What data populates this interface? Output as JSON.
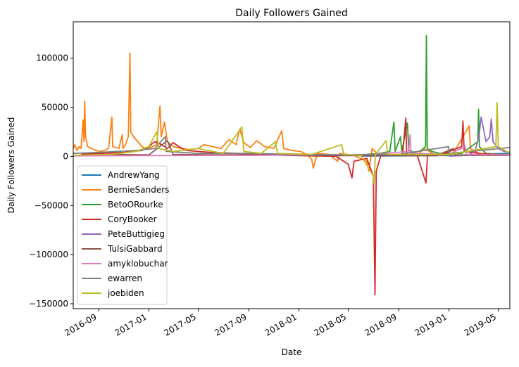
{
  "chart_data": {
    "type": "line",
    "title": "Daily Followers Gained",
    "xlabel": "Date",
    "ylabel": "Daily Followers Gained",
    "xlim": [
      "2016-07-01",
      "2019-05-29"
    ],
    "ylim": [
      -155000,
      137000
    ],
    "xticks": [
      {
        "date": "2016-09-01",
        "label": "2016-09"
      },
      {
        "date": "2017-01-01",
        "label": "2017-01"
      },
      {
        "date": "2017-05-01",
        "label": "2017-05"
      },
      {
        "date": "2017-09-01",
        "label": "2017-09"
      },
      {
        "date": "2018-01-01",
        "label": "2018-01"
      },
      {
        "date": "2018-05-01",
        "label": "2018-05"
      },
      {
        "date": "2018-09-01",
        "label": "2018-09"
      },
      {
        "date": "2019-01-01",
        "label": "2019-01"
      },
      {
        "date": "2019-05-01",
        "label": "2019-05"
      }
    ],
    "yticks": [
      {
        "value": -150000,
        "label": "−150000"
      },
      {
        "value": -100000,
        "label": "−100000"
      },
      {
        "value": -50000,
        "label": "−50000"
      },
      {
        "value": 0,
        "label": "0"
      },
      {
        "value": 50000,
        "label": "50000"
      },
      {
        "value": 100000,
        "label": "100000"
      }
    ],
    "legend_position": "lower-left",
    "grid": false,
    "series": [
      {
        "name": "AndrewYang",
        "color": "#1f77b4",
        "points": [
          [
            "2018-06-01",
            300
          ],
          [
            "2018-09-01",
            500
          ],
          [
            "2019-01-01",
            900
          ],
          [
            "2019-03-01",
            1500
          ],
          [
            "2019-04-01",
            2500
          ],
          [
            "2019-05-29",
            3000
          ]
        ]
      },
      {
        "name": "BernieSanders",
        "color": "#ff7f0e",
        "points": [
          [
            "2016-07-01",
            8000
          ],
          [
            "2016-07-05",
            12000
          ],
          [
            "2016-07-10",
            6000
          ],
          [
            "2016-07-15",
            10000
          ],
          [
            "2016-07-20",
            8000
          ],
          [
            "2016-07-25",
            37000
          ],
          [
            "2016-07-27",
            15000
          ],
          [
            "2016-07-29",
            56000
          ],
          [
            "2016-07-31",
            20000
          ],
          [
            "2016-08-05",
            10000
          ],
          [
            "2016-08-15",
            8000
          ],
          [
            "2016-08-25",
            6000
          ],
          [
            "2016-09-05",
            5000
          ],
          [
            "2016-09-15",
            6000
          ],
          [
            "2016-09-25",
            8000
          ],
          [
            "2016-10-03",
            40000
          ],
          [
            "2016-10-05",
            10000
          ],
          [
            "2016-10-20",
            8000
          ],
          [
            "2016-10-28",
            22000
          ],
          [
            "2016-10-30",
            8000
          ],
          [
            "2016-11-05",
            12000
          ],
          [
            "2016-11-12",
            20000
          ],
          [
            "2016-11-16",
            105000
          ],
          [
            "2016-11-18",
            25000
          ],
          [
            "2016-11-25",
            20000
          ],
          [
            "2016-12-05",
            15000
          ],
          [
            "2016-12-15",
            10000
          ],
          [
            "2016-12-25",
            8000
          ],
          [
            "2017-01-05",
            9000
          ],
          [
            "2017-01-20",
            12000
          ],
          [
            "2017-01-28",
            51000
          ],
          [
            "2017-01-31",
            20000
          ],
          [
            "2017-02-08",
            35000
          ],
          [
            "2017-02-15",
            15000
          ],
          [
            "2017-03-01",
            10000
          ],
          [
            "2017-03-20",
            8000
          ],
          [
            "2017-04-10",
            7000
          ],
          [
            "2017-05-01",
            8000
          ],
          [
            "2017-05-15",
            12000
          ],
          [
            "2017-06-05",
            10000
          ],
          [
            "2017-06-25",
            8000
          ],
          [
            "2017-07-15",
            17000
          ],
          [
            "2017-08-01",
            12000
          ],
          [
            "2017-08-10",
            28000
          ],
          [
            "2017-08-20",
            14000
          ],
          [
            "2017-09-05",
            9000
          ],
          [
            "2017-09-20",
            16000
          ],
          [
            "2017-10-10",
            10000
          ],
          [
            "2017-11-01",
            8000
          ],
          [
            "2017-11-20",
            26000
          ],
          [
            "2017-11-25",
            8000
          ],
          [
            "2017-12-15",
            6000
          ],
          [
            "2018-01-05",
            5000
          ],
          [
            "2018-01-20",
            2000
          ],
          [
            "2018-02-01",
            -3000
          ],
          [
            "2018-02-05",
            -12000
          ],
          [
            "2018-02-15",
            3000
          ],
          [
            "2018-03-15",
            2000
          ],
          [
            "2018-04-05",
            -5000
          ],
          [
            "2018-04-10",
            3000
          ],
          [
            "2018-05-15",
            1000
          ],
          [
            "2018-06-15",
            -5000
          ],
          [
            "2018-06-20",
            -15000
          ],
          [
            "2018-06-28",
            8000
          ],
          [
            "2018-07-10",
            3000
          ],
          [
            "2018-08-10",
            1000
          ],
          [
            "2018-09-15",
            2000
          ],
          [
            "2018-10-15",
            1000
          ],
          [
            "2018-11-01",
            8000
          ],
          [
            "2018-12-01",
            1000
          ],
          [
            "2019-01-10",
            2000
          ],
          [
            "2019-02-19",
            31000
          ],
          [
            "2019-02-22",
            8000
          ],
          [
            "2019-03-15",
            3000
          ],
          [
            "2019-04-15",
            2000
          ],
          [
            "2019-05-15",
            1000
          ],
          [
            "2019-05-29",
            2000
          ]
        ]
      },
      {
        "name": "BetoORourke",
        "color": "#2ca02c",
        "points": [
          [
            "2018-03-01",
            500
          ],
          [
            "2018-06-01",
            1500
          ],
          [
            "2018-07-15",
            3000
          ],
          [
            "2018-08-10",
            5000
          ],
          [
            "2018-08-20",
            35000
          ],
          [
            "2018-08-23",
            5000
          ],
          [
            "2018-09-05",
            20000
          ],
          [
            "2018-09-08",
            5000
          ],
          [
            "2018-09-22",
            34000
          ],
          [
            "2018-09-25",
            6000
          ],
          [
            "2018-10-10",
            4000
          ],
          [
            "2018-10-25",
            6000
          ],
          [
            "2018-11-05",
            10000
          ],
          [
            "2018-11-07",
            123000
          ],
          [
            "2018-11-09",
            8000
          ],
          [
            "2018-11-20",
            5000
          ],
          [
            "2018-12-10",
            3000
          ],
          [
            "2019-01-10",
            3000
          ],
          [
            "2019-02-01",
            3000
          ],
          [
            "2019-03-12",
            15000
          ],
          [
            "2019-03-14",
            48000
          ],
          [
            "2019-03-16",
            10000
          ],
          [
            "2019-04-01",
            3000
          ],
          [
            "2019-05-01",
            2000
          ],
          [
            "2019-05-29",
            1500
          ]
        ]
      },
      {
        "name": "CoryBooker",
        "color": "#d62728",
        "points": [
          [
            "2016-07-20",
            2000
          ],
          [
            "2016-09-01",
            3000
          ],
          [
            "2016-11-01",
            4000
          ],
          [
            "2016-12-15",
            6000
          ],
          [
            "2017-01-01",
            10000
          ],
          [
            "2017-01-15",
            15000
          ],
          [
            "2017-02-01",
            12000
          ],
          [
            "2017-02-15",
            8000
          ],
          [
            "2017-03-01",
            14000
          ],
          [
            "2017-03-15",
            10000
          ],
          [
            "2017-04-01",
            6000
          ],
          [
            "2017-05-01",
            5000
          ],
          [
            "2017-06-01",
            4000
          ],
          [
            "2017-08-01",
            3000
          ],
          [
            "2017-10-01",
            2000
          ],
          [
            "2017-12-01",
            1000
          ],
          [
            "2018-02-01",
            500
          ],
          [
            "2018-04-01",
            0
          ],
          [
            "2018-05-01",
            -8000
          ],
          [
            "2018-05-10",
            -22000
          ],
          [
            "2018-05-15",
            -5000
          ],
          [
            "2018-06-15",
            -2000
          ],
          [
            "2018-07-01",
            -20000
          ],
          [
            "2018-07-05",
            -141000
          ],
          [
            "2018-07-08",
            -15000
          ],
          [
            "2018-07-20",
            2000
          ],
          [
            "2018-09-10",
            1000
          ],
          [
            "2018-09-18",
            39000
          ],
          [
            "2018-09-20",
            2000
          ],
          [
            "2018-10-15",
            2000
          ],
          [
            "2018-11-06",
            -27000
          ],
          [
            "2018-11-10",
            2000
          ],
          [
            "2018-12-15",
            2000
          ],
          [
            "2019-02-01",
            10000
          ],
          [
            "2019-02-04",
            36000
          ],
          [
            "2019-02-07",
            5000
          ],
          [
            "2019-03-15",
            3000
          ],
          [
            "2019-05-29",
            1000
          ]
        ]
      },
      {
        "name": "PeteButtigieg",
        "color": "#9467bd",
        "points": [
          [
            "2019-01-01",
            200
          ],
          [
            "2019-02-15",
            1000
          ],
          [
            "2019-03-05",
            5000
          ],
          [
            "2019-03-15",
            20000
          ],
          [
            "2019-03-20",
            40000
          ],
          [
            "2019-03-25",
            30000
          ],
          [
            "2019-04-01",
            15000
          ],
          [
            "2019-04-10",
            20000
          ],
          [
            "2019-04-14",
            38000
          ],
          [
            "2019-04-18",
            15000
          ],
          [
            "2019-05-01",
            8000
          ],
          [
            "2019-05-15",
            5000
          ],
          [
            "2019-05-29",
            4000
          ]
        ]
      },
      {
        "name": "TulsiGabbard",
        "color": "#8c564b",
        "points": [
          [
            "2016-07-01",
            1000
          ],
          [
            "2016-10-01",
            2000
          ],
          [
            "2017-01-01",
            1500
          ],
          [
            "2017-02-15",
            16000
          ],
          [
            "2017-03-01",
            2000
          ],
          [
            "2017-06-01",
            1500
          ],
          [
            "2017-10-01",
            1500
          ],
          [
            "2018-01-01",
            1000
          ],
          [
            "2018-04-01",
            800
          ],
          [
            "2018-08-01",
            700
          ],
          [
            "2018-12-01",
            800
          ],
          [
            "2019-01-12",
            8000
          ],
          [
            "2019-01-15",
            1500
          ],
          [
            "2019-03-01",
            1000
          ],
          [
            "2019-05-29",
            1000
          ]
        ]
      },
      {
        "name": "amyklobuchar",
        "color": "#e377c2",
        "points": [
          [
            "2016-07-01",
            500
          ],
          [
            "2017-01-01",
            800
          ],
          [
            "2017-10-01",
            1000
          ],
          [
            "2018-01-01",
            1500
          ],
          [
            "2018-07-01",
            2000
          ],
          [
            "2018-09-25",
            5000
          ],
          [
            "2018-09-28",
            22000
          ],
          [
            "2018-10-01",
            3000
          ],
          [
            "2019-01-01",
            2000
          ],
          [
            "2019-02-10",
            10000
          ],
          [
            "2019-02-12",
            2000
          ],
          [
            "2019-05-29",
            1500
          ]
        ]
      },
      {
        "name": "ewarren",
        "color": "#7f7f7f",
        "points": [
          [
            "2016-07-01",
            3000
          ],
          [
            "2016-09-01",
            4000
          ],
          [
            "2016-10-15",
            5000
          ],
          [
            "2016-12-01",
            6000
          ],
          [
            "2017-01-15",
            8000
          ],
          [
            "2017-02-10",
            20000
          ],
          [
            "2017-02-12",
            5000
          ],
          [
            "2017-05-01",
            3000
          ],
          [
            "2017-09-01",
            3000
          ],
          [
            "2018-01-01",
            2000
          ],
          [
            "2018-05-01",
            1500
          ],
          [
            "2018-09-01",
            2000
          ],
          [
            "2018-12-31",
            10000
          ],
          [
            "2019-01-02",
            3000
          ],
          [
            "2019-05-29",
            9000
          ]
        ]
      },
      {
        "name": "joebiden",
        "color": "#bcbd22",
        "points": [
          [
            "2016-07-01",
            1000
          ],
          [
            "2016-10-01",
            2000
          ],
          [
            "2016-12-01",
            5000
          ],
          [
            "2017-01-01",
            10000
          ],
          [
            "2017-01-20",
            25000
          ],
          [
            "2017-01-25",
            8000
          ],
          [
            "2017-03-01",
            5000
          ],
          [
            "2017-05-01",
            8000
          ],
          [
            "2017-07-01",
            3000
          ],
          [
            "2017-08-15",
            30000
          ],
          [
            "2017-08-20",
            5000
          ],
          [
            "2017-10-01",
            3000
          ],
          [
            "2017-11-05",
            15000
          ],
          [
            "2017-11-10",
            3000
          ],
          [
            "2018-02-01",
            2000
          ],
          [
            "2018-04-15",
            12000
          ],
          [
            "2018-04-20",
            2000
          ],
          [
            "2018-06-01",
            1000
          ],
          [
            "2018-07-01",
            -20000
          ],
          [
            "2018-07-03",
            -28000
          ],
          [
            "2018-07-06",
            2000
          ],
          [
            "2018-08-01",
            16000
          ],
          [
            "2018-08-05",
            2000
          ],
          [
            "2018-10-01",
            2000
          ],
          [
            "2019-01-01",
            2000
          ],
          [
            "2019-04-25",
            10000
          ],
          [
            "2019-04-28",
            55000
          ],
          [
            "2019-05-01",
            10000
          ],
          [
            "2019-05-29",
            3000
          ]
        ]
      }
    ]
  }
}
